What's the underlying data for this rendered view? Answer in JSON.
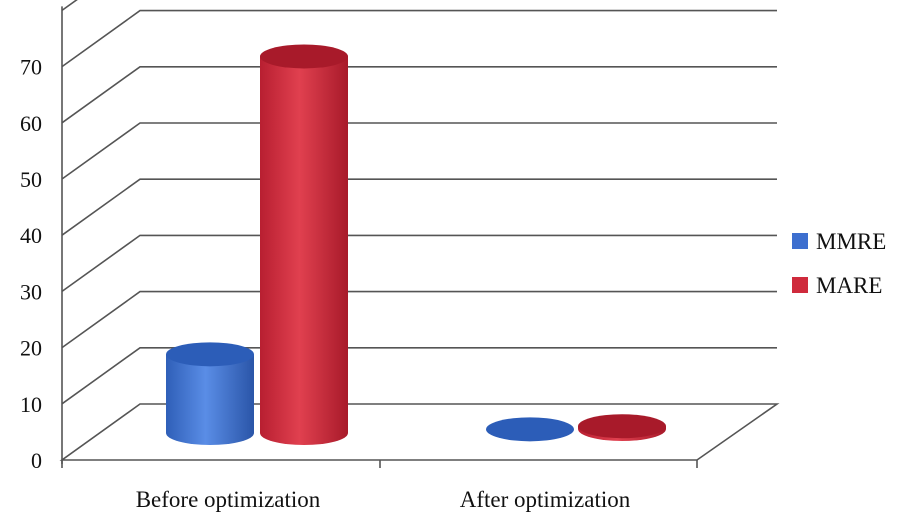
{
  "chart_data": {
    "type": "bar",
    "style": "3d-cylinder",
    "categories": [
      "Before optimization",
      "After optimization"
    ],
    "series": [
      {
        "name": "MMRE",
        "values": [
          14,
          0.3
        ],
        "color": "#3d6fcf"
      },
      {
        "name": "MARE",
        "values": [
          67,
          0.5
        ],
        "color": "#cf2a3c"
      }
    ],
    "yticks": [
      "0",
      "10",
      "20",
      "30",
      "40",
      "50",
      "60",
      "70"
    ],
    "ylim": [
      0,
      80
    ],
    "grid": true,
    "legend": "right"
  }
}
